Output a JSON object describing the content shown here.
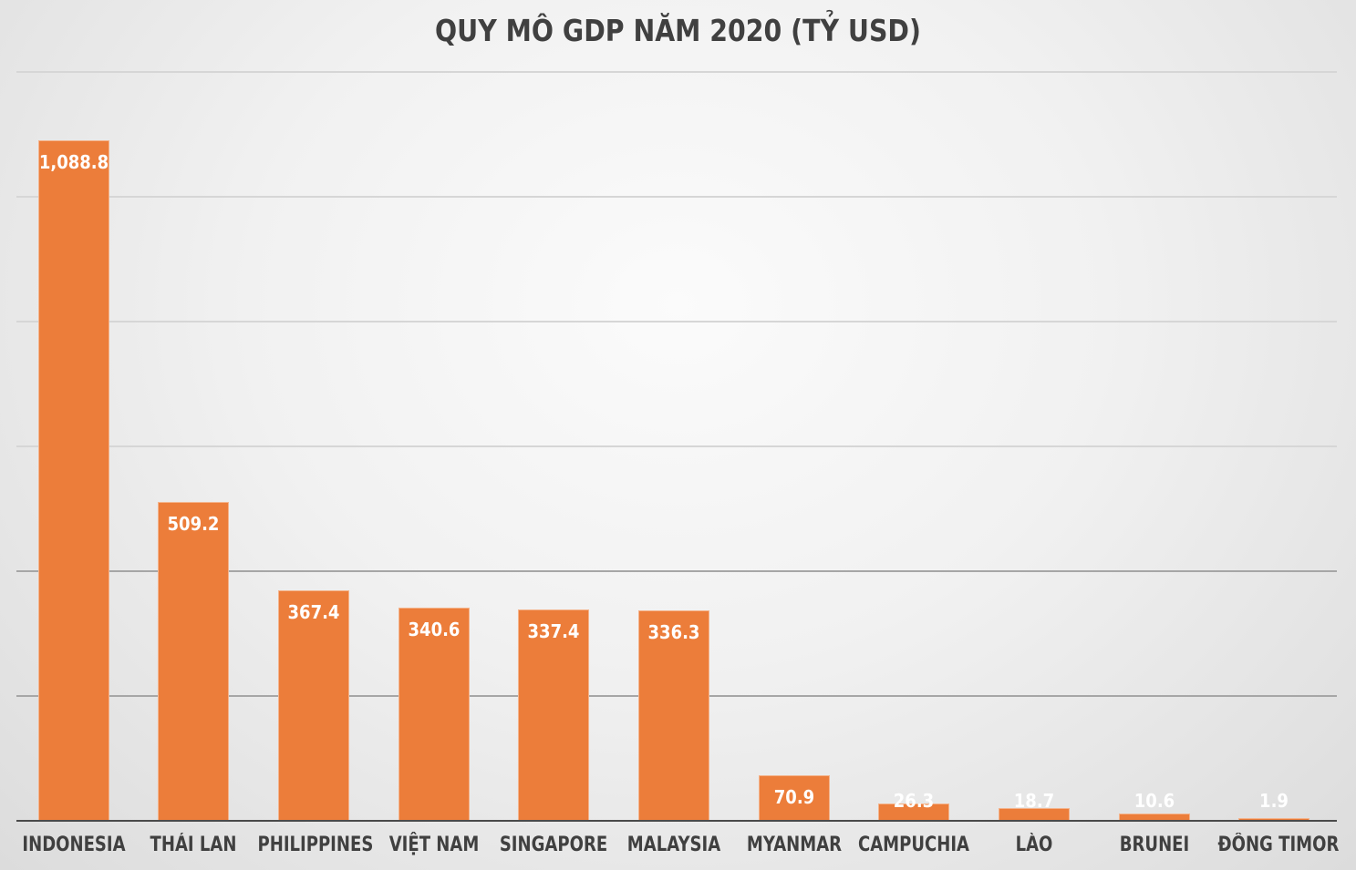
{
  "chart_data": {
    "type": "bar",
    "title": "QUY MÔ GDP NĂM 2020 (TỶ USD)",
    "xlabel": "",
    "ylabel": "",
    "ylim": [
      0,
      1200
    ],
    "grid": true,
    "gridline_values": [
      200,
      400,
      600,
      800,
      1000,
      1200
    ],
    "legend": "none",
    "bar_color": "#ec7d3a",
    "categories": [
      "INDONESIA",
      "THÁI LAN",
      "PHILIPPINES",
      "VIỆT NAM",
      "SINGAPORE",
      "MALAYSIA",
      "MYANMAR",
      "CAMPUCHIA",
      "LÀO",
      "BRUNEI",
      "ĐÔNG TIMOR"
    ],
    "values": [
      1088.8,
      509.2,
      367.4,
      340.6,
      337.4,
      336.3,
      70.9,
      26.3,
      18.7,
      10.6,
      1.9
    ],
    "data_labels": [
      "1,088.8",
      "509.2",
      "367.4",
      "340.6",
      "337.4",
      "336.3",
      "70.9",
      "26.3",
      "18.7",
      "10.6",
      "1.9"
    ]
  }
}
